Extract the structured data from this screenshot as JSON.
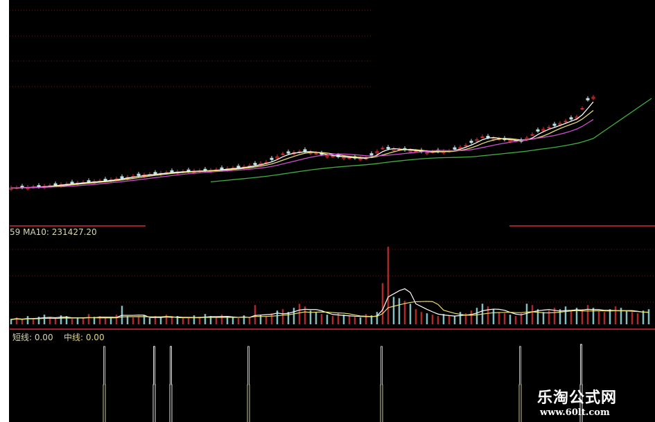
{
  "chart_data": {
    "type": "line",
    "panels": [
      "price",
      "volume",
      "signal"
    ],
    "grid": true,
    "price": {
      "x_index": [
        0,
        5,
        11,
        17,
        23,
        29,
        36,
        42,
        46,
        49,
        53,
        57,
        61,
        64,
        67,
        71,
        75,
        79,
        82,
        85,
        89,
        92,
        95,
        98,
        102,
        104,
        105
      ],
      "close": [
        35,
        37,
        43,
        48,
        57,
        63,
        66,
        72,
        80,
        95,
        100,
        92,
        88,
        87,
        105,
        102,
        98,
        100,
        110,
        125,
        120,
        117,
        135,
        145,
        160,
        190,
        195
      ],
      "ma_colors": {
        "ma5": "#ffffff",
        "ma10": "#e8e070",
        "ma20": "#d050d0",
        "ma60": "#40b040"
      },
      "up_color": "#d03030"
    },
    "volume": {
      "label": "59 MA10: 231427.20",
      "values": [
        8,
        10,
        7,
        12,
        9,
        11,
        14,
        10,
        9,
        13,
        12,
        8,
        10,
        9,
        15,
        11,
        12,
        10,
        9,
        14,
        27,
        12,
        10,
        11,
        13,
        9,
        12,
        10,
        14,
        11,
        12,
        9,
        10,
        13,
        11,
        15,
        12,
        10,
        14,
        12,
        11,
        9,
        13,
        10,
        28,
        14,
        12,
        16,
        20,
        22,
        18,
        24,
        30,
        26,
        20,
        18,
        15,
        14,
        12,
        16,
        14,
        12,
        11,
        10,
        15,
        13,
        18,
        60,
        113,
        40,
        38,
        34,
        30,
        22,
        18,
        16,
        14,
        12,
        15,
        13,
        12,
        18,
        16,
        20,
        24,
        30,
        26,
        22,
        18,
        16,
        14,
        12,
        16,
        30,
        28,
        22,
        18,
        20,
        24,
        22,
        26,
        20,
        24,
        22,
        28,
        24,
        20,
        18,
        22,
        26,
        24,
        20,
        18,
        16,
        20,
        22
      ],
      "up_color": "#b02828",
      "down_color": "#80c0c0"
    },
    "signal": {
      "label_short": "短线: 0.00",
      "label_mid": "中线: 0.00",
      "spikes": [
        {
          "x_index": 17,
          "color": "#d0c890"
        },
        {
          "x_index": 26,
          "color": "#e8e8e8"
        },
        {
          "x_index": 29,
          "color": "#e8e8e8"
        },
        {
          "x_index": 43,
          "color": "#d0c890"
        },
        {
          "x_index": 67,
          "color": "#d0c890"
        },
        {
          "x_index": 92,
          "color": "#d0c890"
        },
        {
          "x_index": 103,
          "color": "#e8e8e8"
        }
      ]
    }
  },
  "watermark": {
    "name": "乐淘公式网",
    "url": "www.60lt.com"
  }
}
